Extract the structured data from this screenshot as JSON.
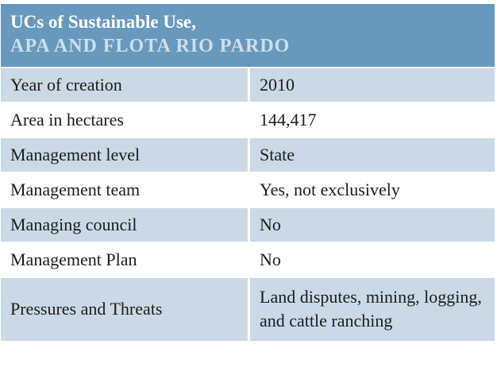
{
  "table": {
    "header": {
      "title": "UCs of Sustainable Use,",
      "subtitle": "APA AND FLOTA RIO PARDO"
    },
    "rows": [
      {
        "label": "Year of creation",
        "value": "2010"
      },
      {
        "label": "Area in hectares",
        "value": "144,417"
      },
      {
        "label": "Management level",
        "value": "State"
      },
      {
        "label": "Management team",
        "value": "Yes, not exclusively"
      },
      {
        "label": "Managing council",
        "value": "No"
      },
      {
        "label": "Management Plan",
        "value": "No"
      },
      {
        "label": "Pressures and Threats",
        "value": "Land disputes, mining, logging, and cattle ranching"
      }
    ],
    "colors": {
      "header_bg": "#6899bd",
      "header_title_text": "#ffffff",
      "header_subtitle_text": "#cfdfec",
      "row_alt_bg": "#cbd9e6",
      "row_plain_bg": "#ffffff",
      "body_text": "#1c1c1c"
    }
  }
}
